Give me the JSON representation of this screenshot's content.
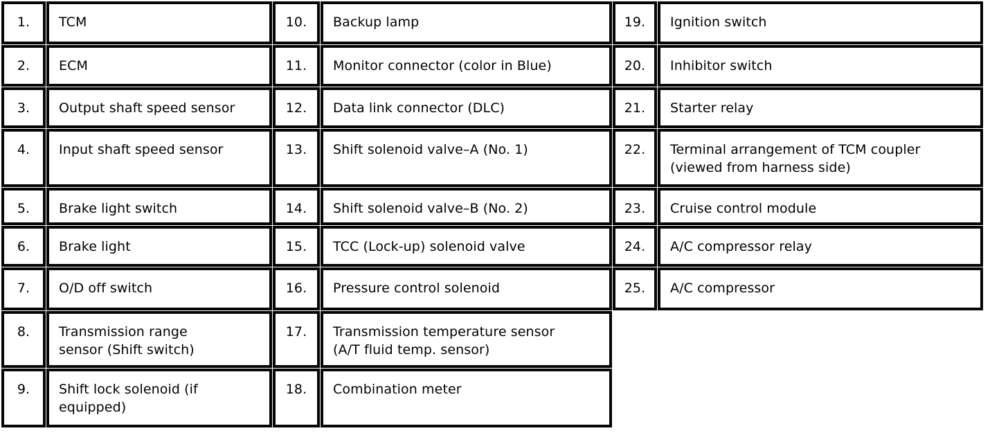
{
  "table": {
    "columns": [
      {
        "items": [
          {
            "num": "1.",
            "label": "TCM"
          },
          {
            "num": "2.",
            "label": "ECM"
          },
          {
            "num": "3.",
            "label": "Output shaft speed sensor"
          },
          {
            "num": "4.",
            "label": "Input shaft speed sensor"
          },
          {
            "num": "5.",
            "label": "Brake light switch"
          },
          {
            "num": "6.",
            "label": "Brake light"
          },
          {
            "num": "7.",
            "label": "O/D off switch"
          },
          {
            "num": "8.",
            "label": "Transmission range\nsensor (Shift switch)"
          },
          {
            "num": "9.",
            "label": "Shift lock solenoid (if\nequipped)"
          }
        ]
      },
      {
        "items": [
          {
            "num": "10.",
            "label": "Backup lamp"
          },
          {
            "num": "11.",
            "label": "Monitor connector (color in Blue)"
          },
          {
            "num": "12.",
            "label": "Data link connector (DLC)"
          },
          {
            "num": "13.",
            "label": "Shift solenoid valve–A (No. 1)"
          },
          {
            "num": "14.",
            "label": "Shift solenoid valve–B (No. 2)"
          },
          {
            "num": "15.",
            "label": "TCC (Lock-up) solenoid valve"
          },
          {
            "num": "16.",
            "label": "Pressure control solenoid"
          },
          {
            "num": "17.",
            "label": "Transmission temperature sensor\n(A/T fluid temp. sensor)"
          },
          {
            "num": "18.",
            "label": "Combination meter"
          }
        ]
      },
      {
        "items": [
          {
            "num": "19.",
            "label": "Ignition switch"
          },
          {
            "num": "20.",
            "label": "Inhibitor switch"
          },
          {
            "num": "21.",
            "label": "Starter relay"
          },
          {
            "num": "22.",
            "label": "Terminal arrangement of TCM coupler\n(viewed from harness side)"
          },
          {
            "num": "23.",
            "label": "Cruise control module"
          },
          {
            "num": "24.",
            "label": "A/C compressor relay"
          },
          {
            "num": "25.",
            "label": "A/C compressor"
          }
        ]
      }
    ],
    "colors": {
      "border": "#050505",
      "background": "#ffffff",
      "text": "#000000"
    }
  }
}
